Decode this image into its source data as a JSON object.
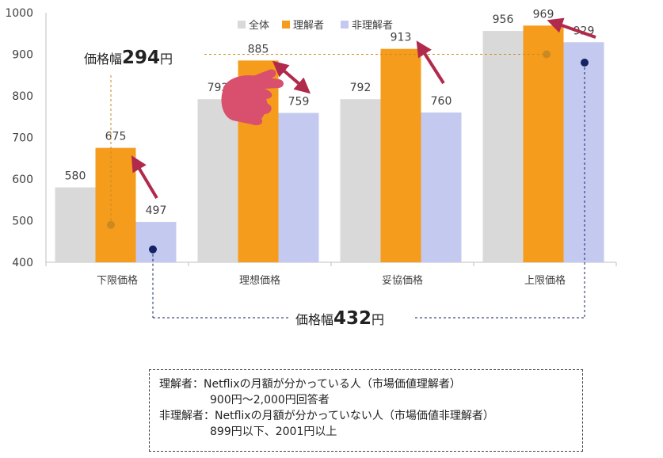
{
  "colors": {
    "all": "#d9d9d9",
    "aware": "#f59c1c",
    "unaware": "#c4c9ef",
    "arrow": "#b12a4b",
    "hand": "#d94f6e",
    "aware_dot": "#c98a22",
    "unaware_dot": "#142266"
  },
  "chart_data": {
    "type": "bar",
    "categories": [
      "下限価格",
      "理想価格",
      "妥協価格",
      "上限価格"
    ],
    "series": [
      {
        "name": "全体",
        "values": [
          580,
          792,
          792,
          956
        ]
      },
      {
        "name": "理解者",
        "values": [
          675,
          885,
          913,
          969
        ]
      },
      {
        "name": "非理解者",
        "values": [
          497,
          759,
          760,
          929
        ]
      }
    ],
    "ylim": [
      400,
      1000
    ],
    "yticks": [
      "400",
      "500",
      "600",
      "700",
      "800",
      "900",
      "1000"
    ],
    "grid": false,
    "legend_position": "top"
  },
  "annotations": {
    "range_aware": {
      "prefix": "価格幅",
      "value": "294",
      "suffix": "円"
    },
    "range_unaware": {
      "prefix": "価格幅",
      "value": "432",
      "suffix": "円"
    }
  },
  "note": {
    "line1": "理解者：Netflixの月額が分かっている人（市場価値理解者）",
    "line2": "900円～2,000円回答者",
    "line3": "非理解者：Netflixの月額が分かっていない人（市場価値非理解者）",
    "line4": "899円以下、2001円以上"
  }
}
